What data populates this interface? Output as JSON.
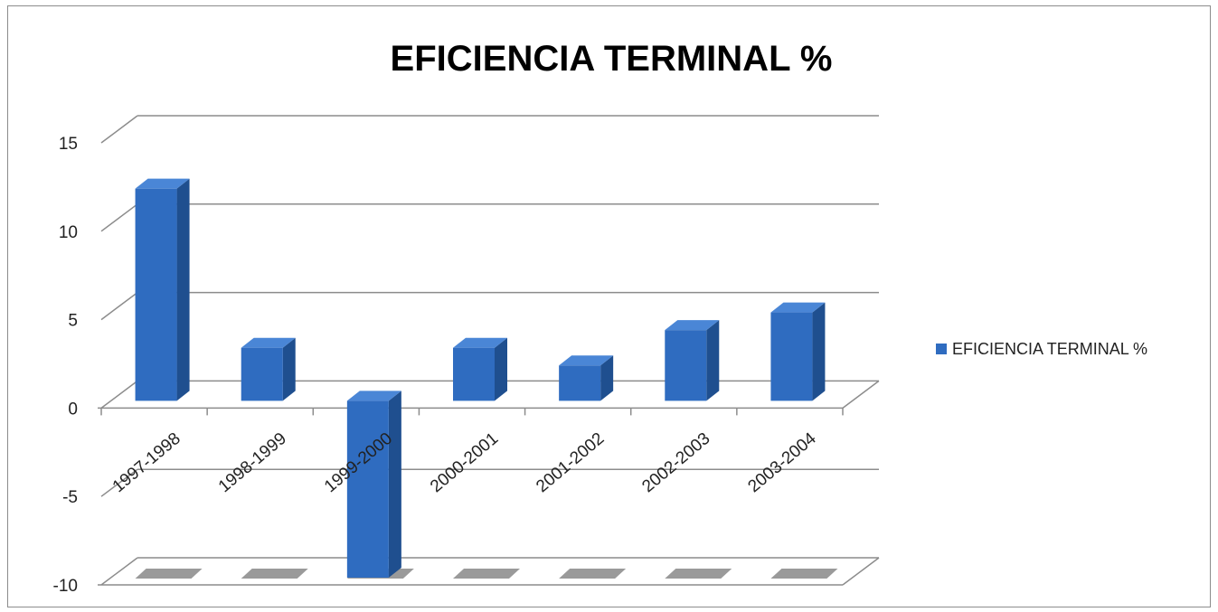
{
  "chart_data": {
    "type": "bar",
    "title": "EFICIENCIA TERMINAL %",
    "categories": [
      "1997-1998",
      "1998-1999",
      "1999-2000",
      "2000-2001",
      "2001-2002",
      "2002-2003",
      "2003-2004"
    ],
    "series": [
      {
        "name": "EFICIENCIA TERMINAL %",
        "values": [
          12,
          3,
          -10,
          3,
          2,
          4,
          5
        ]
      }
    ],
    "yticks": [
      "15",
      "10",
      "5",
      "0",
      "-5",
      "-10"
    ],
    "ylim": [
      -10,
      15
    ],
    "grid": true,
    "legend": "right",
    "colors": {
      "bar_front": "#2f6cc0",
      "bar_side": "#1f4f8f",
      "bar_top": "#4a86d6",
      "grid": "#8c8c8c",
      "floor_mark": "#9a9a9a"
    }
  }
}
